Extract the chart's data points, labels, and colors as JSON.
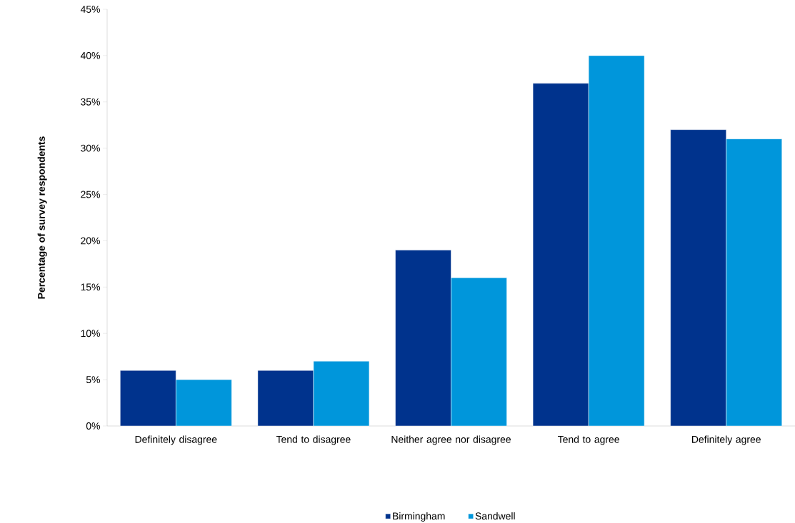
{
  "chart_data": {
    "type": "bar",
    "ylabel": "Percentage of survey respondents",
    "categories": [
      "Definitely disagree",
      "Tend to disagree",
      "Neither agree nor disagree",
      "Tend to agree",
      "Definitely agree"
    ],
    "series": [
      {
        "name": "Birmingham",
        "color": "#00338d",
        "values": [
          6,
          6,
          19,
          37,
          32
        ]
      },
      {
        "name": "Sandwell",
        "color": "#0096db",
        "values": [
          5,
          7,
          16,
          40,
          31
        ]
      }
    ],
    "ylim": [
      0,
      45
    ],
    "yticks": [
      {
        "value": 0,
        "label": "0%"
      },
      {
        "value": 5,
        "label": "5%"
      },
      {
        "value": 10,
        "label": "10%"
      },
      {
        "value": 15,
        "label": "15%"
      },
      {
        "value": 20,
        "label": "20%"
      },
      {
        "value": 25,
        "label": "25%"
      },
      {
        "value": 30,
        "label": "30%"
      },
      {
        "value": 35,
        "label": "35%"
      },
      {
        "value": 40,
        "label": "40%"
      },
      {
        "value": 45,
        "label": "45%"
      }
    ],
    "grid": false,
    "legend": "bottom"
  }
}
